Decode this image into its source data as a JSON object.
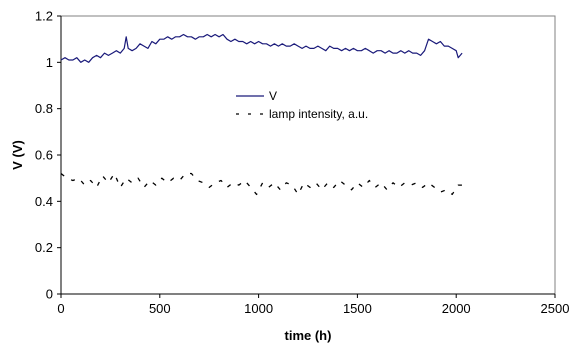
{
  "chart_data": {
    "type": "line",
    "xlabel": "time (h)",
    "ylabel": "V (V)",
    "xlim": [
      0,
      2500
    ],
    "ylim": [
      0,
      1.2
    ],
    "x_ticks": [
      "0",
      "500",
      "1000",
      "1500",
      "2000",
      "2500"
    ],
    "y_ticks": [
      "0",
      "0.2",
      "0.4",
      "0.6",
      "0.8",
      "1",
      "1.2"
    ],
    "grid": false,
    "legend_position": "center-right, inside plot",
    "series": [
      {
        "name": "V",
        "style": "solid",
        "color": "#1a1a7a",
        "points": [
          [
            0,
            1.01
          ],
          [
            20,
            1.02
          ],
          [
            40,
            1.01
          ],
          [
            60,
            1.01
          ],
          [
            80,
            1.02
          ],
          [
            100,
            1.0
          ],
          [
            120,
            1.01
          ],
          [
            140,
            1.0
          ],
          [
            160,
            1.02
          ],
          [
            180,
            1.03
          ],
          [
            200,
            1.02
          ],
          [
            220,
            1.04
          ],
          [
            240,
            1.03
          ],
          [
            260,
            1.04
          ],
          [
            280,
            1.05
          ],
          [
            300,
            1.04
          ],
          [
            320,
            1.06
          ],
          [
            330,
            1.11
          ],
          [
            340,
            1.06
          ],
          [
            360,
            1.05
          ],
          [
            380,
            1.06
          ],
          [
            400,
            1.08
          ],
          [
            420,
            1.07
          ],
          [
            440,
            1.06
          ],
          [
            460,
            1.09
          ],
          [
            480,
            1.08
          ],
          [
            500,
            1.1
          ],
          [
            520,
            1.1
          ],
          [
            540,
            1.11
          ],
          [
            560,
            1.1
          ],
          [
            580,
            1.11
          ],
          [
            600,
            1.11
          ],
          [
            620,
            1.12
          ],
          [
            640,
            1.11
          ],
          [
            660,
            1.11
          ],
          [
            680,
            1.1
          ],
          [
            700,
            1.11
          ],
          [
            720,
            1.11
          ],
          [
            740,
            1.12
          ],
          [
            760,
            1.11
          ],
          [
            780,
            1.12
          ],
          [
            800,
            1.11
          ],
          [
            820,
            1.12
          ],
          [
            840,
            1.1
          ],
          [
            860,
            1.09
          ],
          [
            880,
            1.1
          ],
          [
            900,
            1.09
          ],
          [
            920,
            1.09
          ],
          [
            940,
            1.08
          ],
          [
            960,
            1.09
          ],
          [
            980,
            1.08
          ],
          [
            1000,
            1.09
          ],
          [
            1020,
            1.08
          ],
          [
            1040,
            1.08
          ],
          [
            1060,
            1.07
          ],
          [
            1080,
            1.08
          ],
          [
            1100,
            1.07
          ],
          [
            1120,
            1.08
          ],
          [
            1140,
            1.07
          ],
          [
            1160,
            1.07
          ],
          [
            1180,
            1.08
          ],
          [
            1200,
            1.07
          ],
          [
            1220,
            1.06
          ],
          [
            1240,
            1.07
          ],
          [
            1260,
            1.06
          ],
          [
            1280,
            1.06
          ],
          [
            1300,
            1.07
          ],
          [
            1320,
            1.06
          ],
          [
            1340,
            1.05
          ],
          [
            1360,
            1.07
          ],
          [
            1380,
            1.06
          ],
          [
            1400,
            1.06
          ],
          [
            1420,
            1.05
          ],
          [
            1440,
            1.06
          ],
          [
            1460,
            1.05
          ],
          [
            1480,
            1.06
          ],
          [
            1500,
            1.05
          ],
          [
            1520,
            1.05
          ],
          [
            1540,
            1.06
          ],
          [
            1560,
            1.05
          ],
          [
            1580,
            1.04
          ],
          [
            1600,
            1.05
          ],
          [
            1620,
            1.05
          ],
          [
            1640,
            1.04
          ],
          [
            1660,
            1.05
          ],
          [
            1680,
            1.04
          ],
          [
            1700,
            1.04
          ],
          [
            1720,
            1.05
          ],
          [
            1740,
            1.04
          ],
          [
            1760,
            1.05
          ],
          [
            1780,
            1.04
          ],
          [
            1800,
            1.04
          ],
          [
            1820,
            1.03
          ],
          [
            1840,
            1.05
          ],
          [
            1860,
            1.1
          ],
          [
            1880,
            1.09
          ],
          [
            1900,
            1.08
          ],
          [
            1920,
            1.09
          ],
          [
            1940,
            1.07
          ],
          [
            1960,
            1.07
          ],
          [
            1980,
            1.06
          ],
          [
            2000,
            1.05
          ],
          [
            2010,
            1.02
          ],
          [
            2020,
            1.03
          ],
          [
            2030,
            1.04
          ]
        ]
      },
      {
        "name": "lamp intensity, a.u.",
        "style": "dashed",
        "color": "#000000",
        "points": [
          [
            0,
            0.52
          ],
          [
            30,
            0.5
          ],
          [
            60,
            0.49
          ],
          [
            90,
            0.5
          ],
          [
            120,
            0.47
          ],
          [
            150,
            0.49
          ],
          [
            180,
            0.46
          ],
          [
            210,
            0.51
          ],
          [
            240,
            0.48
          ],
          [
            270,
            0.52
          ],
          [
            300,
            0.46
          ],
          [
            330,
            0.5
          ],
          [
            360,
            0.48
          ],
          [
            390,
            0.5
          ],
          [
            420,
            0.46
          ],
          [
            450,
            0.49
          ],
          [
            480,
            0.47
          ],
          [
            510,
            0.5
          ],
          [
            540,
            0.48
          ],
          [
            570,
            0.5
          ],
          [
            600,
            0.49
          ],
          [
            630,
            0.52
          ],
          [
            660,
            0.52
          ],
          [
            690,
            0.49
          ],
          [
            720,
            0.48
          ],
          [
            750,
            0.46
          ],
          [
            780,
            0.48
          ],
          [
            810,
            0.49
          ],
          [
            840,
            0.46
          ],
          [
            870,
            0.48
          ],
          [
            900,
            0.47
          ],
          [
            930,
            0.49
          ],
          [
            960,
            0.46
          ],
          [
            990,
            0.43
          ],
          [
            1020,
            0.48
          ],
          [
            1050,
            0.46
          ],
          [
            1080,
            0.48
          ],
          [
            1110,
            0.45
          ],
          [
            1140,
            0.48
          ],
          [
            1170,
            0.47
          ],
          [
            1200,
            0.43
          ],
          [
            1230,
            0.48
          ],
          [
            1260,
            0.46
          ],
          [
            1290,
            0.48
          ],
          [
            1320,
            0.45
          ],
          [
            1350,
            0.48
          ],
          [
            1380,
            0.46
          ],
          [
            1410,
            0.49
          ],
          [
            1440,
            0.47
          ],
          [
            1470,
            0.45
          ],
          [
            1500,
            0.48
          ],
          [
            1530,
            0.46
          ],
          [
            1560,
            0.49
          ],
          [
            1590,
            0.46
          ],
          [
            1620,
            0.48
          ],
          [
            1650,
            0.45
          ],
          [
            1680,
            0.48
          ],
          [
            1710,
            0.46
          ],
          [
            1740,
            0.48
          ],
          [
            1770,
            0.47
          ],
          [
            1800,
            0.48
          ],
          [
            1830,
            0.46
          ],
          [
            1860,
            0.48
          ],
          [
            1890,
            0.46
          ],
          [
            1920,
            0.44
          ],
          [
            1950,
            0.45
          ],
          [
            1980,
            0.43
          ],
          [
            2010,
            0.47
          ],
          [
            2030,
            0.47
          ]
        ]
      }
    ]
  }
}
